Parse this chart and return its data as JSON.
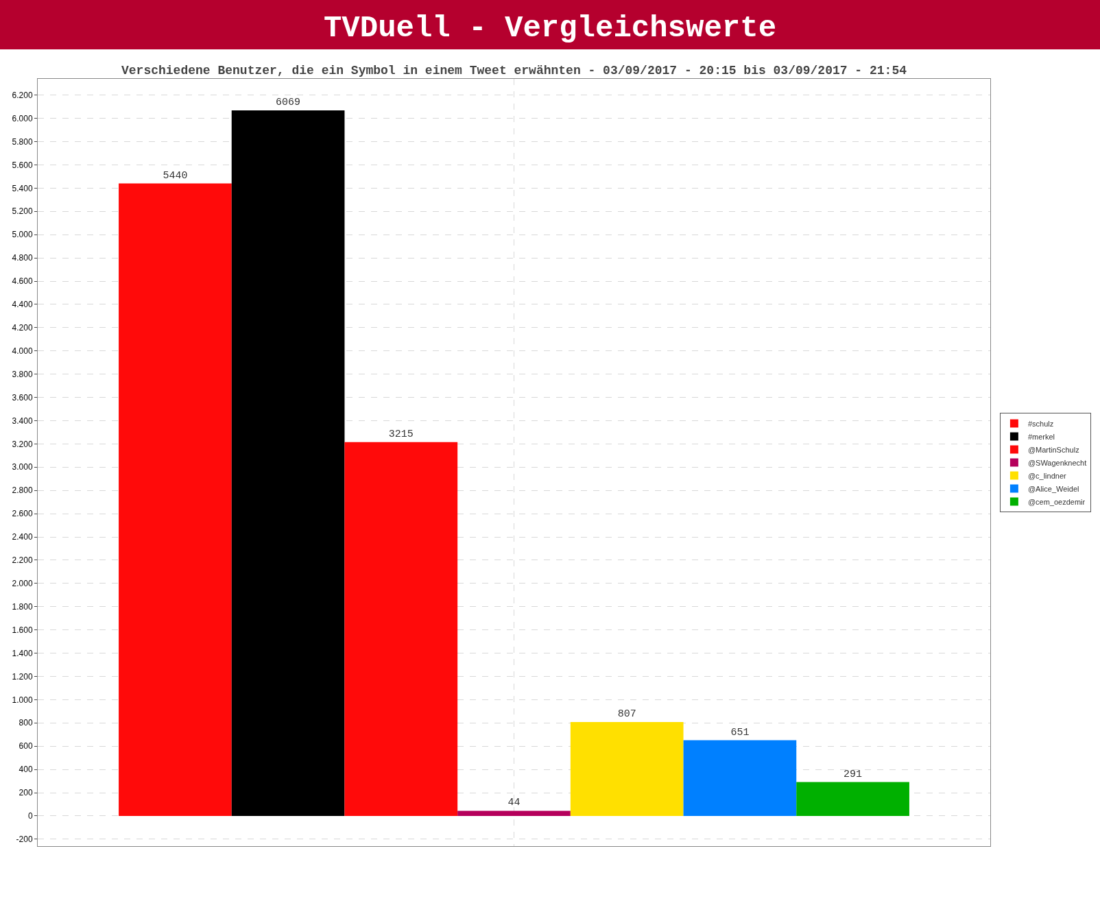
{
  "chart_data": {
    "type": "bar",
    "title": "TVDuell - Vergleichswerte",
    "subtitle": "Verschiedene Benutzer, die ein Symbol in einem Tweet erwähnten - 03/09/2017 - 20:15 bis 03/09/2017 - 21:54",
    "categories": [
      null
    ],
    "series": [
      {
        "name": "#schulz",
        "color": "#ff0a0a",
        "values": [
          5440
        ]
      },
      {
        "name": "#merkel",
        "color": "#000000",
        "values": [
          6069
        ]
      },
      {
        "name": "@MartinSchulz",
        "color": "#ff0a0a",
        "values": [
          3215
        ]
      },
      {
        "name": "@SWagenknecht",
        "color": "#b5005b",
        "values": [
          44
        ]
      },
      {
        "name": "@c_lindner",
        "color": "#ffe000",
        "values": [
          807
        ]
      },
      {
        "name": "@Alice_Weidel",
        "color": "#0080ff",
        "values": [
          651
        ]
      },
      {
        "name": "@cem_oezdemir",
        "color": "#00b000",
        "values": [
          291
        ]
      }
    ],
    "ylim": [
      -260,
      6340
    ],
    "yticks": [
      {
        "value": -200,
        "label": "-200"
      },
      0,
      200,
      400,
      600,
      800,
      {
        "value": 1000,
        "label": "1.000"
      },
      {
        "value": 1200,
        "label": "1.200"
      },
      {
        "value": 1400,
        "label": "1.400"
      },
      {
        "value": 1600,
        "label": "1.600"
      },
      {
        "value": 1800,
        "label": "1.800"
      },
      {
        "value": 2000,
        "label": "2.000"
      },
      {
        "value": 2200,
        "label": "2.200"
      },
      {
        "value": 2400,
        "label": "2.400"
      },
      {
        "value": 2600,
        "label": "2.600"
      },
      {
        "value": 2800,
        "label": "2.800"
      },
      {
        "value": 3000,
        "label": "3.000"
      },
      {
        "value": 3200,
        "label": "3.200"
      },
      {
        "value": 3400,
        "label": "3.400"
      },
      {
        "value": 3600,
        "label": "3.600"
      },
      {
        "value": 3800,
        "label": "3.800"
      },
      {
        "value": 4000,
        "label": "4.000"
      },
      {
        "value": 4200,
        "label": "4.200"
      },
      {
        "value": 4400,
        "label": "4.400"
      },
      {
        "value": 4600,
        "label": "4.600"
      },
      {
        "value": 4800,
        "label": "4.800"
      },
      {
        "value": 5000,
        "label": "5.000"
      },
      {
        "value": 5200,
        "label": "5.200"
      },
      {
        "value": 5400,
        "label": "5.400"
      },
      {
        "value": 5600,
        "label": "5.600"
      },
      {
        "value": 5800,
        "label": "5.800"
      },
      {
        "value": 6000,
        "label": "6.000"
      },
      {
        "value": 6200,
        "label": "6.200"
      }
    ],
    "grid": true,
    "legend": "right",
    "data_labels": true
  }
}
